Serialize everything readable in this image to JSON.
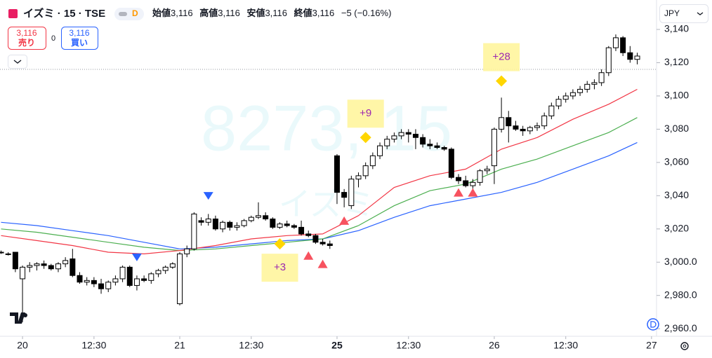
{
  "header": {
    "symbol": "イズミ · 15 · TSE",
    "interval_badge": "D",
    "ohlc_legend": [
      {
        "label": "始値",
        "value": "3,116"
      },
      {
        "label": "高値",
        "value": "3,116"
      },
      {
        "label": "安値",
        "value": "3,116"
      },
      {
        "label": "終値",
        "value": "3,116"
      }
    ],
    "change": "−5 (−0.16%)"
  },
  "trade": {
    "sell_price": "3,116",
    "sell_label": "売り",
    "spread": "0",
    "buy_price": "3,116",
    "buy_label": "買い"
  },
  "currency": "JPY",
  "watermark": {
    "line1": "8273, 15",
    "line2": "イズミ"
  },
  "chart_data": {
    "type": "candlestick",
    "candles": [
      [
        3006,
        3007,
        3005,
        3006
      ],
      [
        3005,
        3006,
        3004,
        3005
      ],
      [
        3006,
        3006,
        2994,
        2996
      ],
      [
        2990,
        2998,
        2964,
        2997
      ],
      [
        2997,
        3000,
        2994,
        2998
      ],
      [
        2998,
        3000,
        2995,
        2999
      ],
      [
        2999,
        3001,
        2996,
        2998
      ],
      [
        2998,
        2999,
        2995,
        2996
      ],
      [
        2996,
        3000,
        2994,
        2999
      ],
      [
        2999,
        3003,
        2997,
        3001
      ],
      [
        3002,
        3008,
        2991,
        2992
      ],
      [
        2992,
        2994,
        2987,
        2988
      ],
      [
        2988,
        2991,
        2986,
        2989
      ],
      [
        2989,
        2991,
        2985,
        2987
      ],
      [
        2987,
        2990,
        2981,
        2984
      ],
      [
        2984,
        2989,
        2982,
        2988
      ],
      [
        2988,
        2992,
        2986,
        2990
      ],
      [
        2990,
        2998,
        2988,
        2997
      ],
      [
        2997,
        2998,
        2985,
        2986
      ],
      [
        2986,
        2992,
        2983,
        2990
      ],
      [
        2990,
        2992,
        2988,
        2989
      ],
      [
        2989,
        2994,
        2987,
        2993
      ],
      [
        2993,
        2996,
        2991,
        2995
      ],
      [
        2995,
        2998,
        2993,
        2997
      ],
      [
        2997,
        3000,
        2996,
        2999
      ],
      [
        2975,
        3006,
        2974,
        3005
      ],
      [
        3005,
        3010,
        3003,
        3008
      ],
      [
        3008,
        3030,
        3007,
        3029
      ],
      [
        3025,
        3027,
        3022,
        3024
      ],
      [
        3024,
        3029,
        3022,
        3026
      ],
      [
        3026,
        3028,
        3019,
        3020
      ],
      [
        3020,
        3025,
        3018,
        3024
      ],
      [
        3024,
        3025,
        3019,
        3021
      ],
      [
        3021,
        3024,
        3019,
        3022
      ],
      [
        3022,
        3026,
        3021,
        3025
      ],
      [
        3025,
        3028,
        3024,
        3027
      ],
      [
        3027,
        3036,
        3026,
        3028
      ],
      [
        3028,
        3030,
        3025,
        3026
      ],
      [
        3026,
        3027,
        3020,
        3021
      ],
      [
        3021,
        3024,
        3020,
        3023
      ],
      [
        3023,
        3025,
        3021,
        3022
      ],
      [
        3022,
        3023,
        3020,
        3021
      ],
      [
        3021,
        3025,
        3016,
        3017
      ],
      [
        3017,
        3019,
        3015,
        3016
      ],
      [
        3016,
        3017,
        3011,
        3012
      ],
      [
        3012,
        3014,
        3010,
        3011
      ],
      [
        3011,
        3013,
        3008,
        3010
      ],
      [
        3064,
        3065,
        3035,
        3042
      ],
      [
        3042,
        3044,
        3033,
        3039
      ],
      [
        3034,
        3052,
        3032,
        3050
      ],
      [
        3050,
        3054,
        3045,
        3052
      ],
      [
        3052,
        3060,
        3050,
        3058
      ],
      [
        3058,
        3066,
        3056,
        3064
      ],
      [
        3064,
        3072,
        3062,
        3070
      ],
      [
        3070,
        3076,
        3068,
        3074
      ],
      [
        3074,
        3078,
        3072,
        3076
      ],
      [
        3076,
        3080,
        3074,
        3078
      ],
      [
        3078,
        3080,
        3072,
        3077
      ],
      [
        3077,
        3080,
        3068,
        3075
      ],
      [
        3075,
        3077,
        3069,
        3071
      ],
      [
        3071,
        3074,
        3068,
        3070
      ],
      [
        3070,
        3072,
        3068,
        3069
      ],
      [
        3069,
        3070,
        3067,
        3068
      ],
      [
        3068,
        3069,
        3050,
        3051
      ],
      [
        3051,
        3053,
        3047,
        3049
      ],
      [
        3049,
        3052,
        3045,
        3046
      ],
      [
        3046,
        3050,
        3044,
        3048
      ],
      [
        3048,
        3056,
        3046,
        3055
      ],
      [
        3055,
        3058,
        3053,
        3056
      ],
      [
        3058,
        3081,
        3047,
        3080
      ],
      [
        3080,
        3099,
        3078,
        3087
      ],
      [
        3087,
        3091,
        3072,
        3082
      ],
      [
        3082,
        3085,
        3079,
        3080
      ],
      [
        3080,
        3082,
        3076,
        3079
      ],
      [
        3079,
        3082,
        3077,
        3081
      ],
      [
        3081,
        3084,
        3079,
        3082
      ],
      [
        3082,
        3090,
        3080,
        3088
      ],
      [
        3088,
        3096,
        3086,
        3094
      ],
      [
        3094,
        3100,
        3092,
        3098
      ],
      [
        3098,
        3102,
        3096,
        3100
      ],
      [
        3100,
        3104,
        3098,
        3102
      ],
      [
        3102,
        3106,
        3100,
        3104
      ],
      [
        3104,
        3109,
        3102,
        3107
      ],
      [
        3107,
        3110,
        3104,
        3108
      ],
      [
        3108,
        3116,
        3106,
        3114
      ],
      [
        3114,
        3130,
        3112,
        3129
      ],
      [
        3129,
        3137,
        3127,
        3135
      ],
      [
        3135,
        3136,
        3124,
        3126
      ],
      [
        3126,
        3130,
        3120,
        3122
      ],
      [
        3122,
        3126,
        3119,
        3124
      ]
    ],
    "up_color": "#ffffff",
    "down_color": "#000000",
    "ma_x": [
      0,
      5,
      10,
      15,
      20,
      25,
      30,
      35,
      40,
      45,
      50,
      55,
      60,
      65,
      70,
      75,
      80,
      85,
      89
    ],
    "series": [
      {
        "color": "#2962ff",
        "values": [
          3024,
          3022,
          3019,
          3016,
          3012,
          3008,
          3009,
          3011,
          3013,
          3014,
          3019,
          3027,
          3034,
          3038,
          3042,
          3048,
          3056,
          3064,
          3072
        ]
      },
      {
        "color": "#4caf50",
        "values": [
          3020,
          3018,
          3015,
          3012,
          3009,
          3007,
          3008,
          3010,
          3012,
          3014,
          3022,
          3034,
          3043,
          3047,
          3056,
          3062,
          3070,
          3078,
          3087
        ]
      },
      {
        "color": "#f23645",
        "values": [
          3016,
          3013,
          3010,
          3006,
          3005,
          3007,
          3010,
          3014,
          3016,
          3017,
          3028,
          3045,
          3052,
          3056,
          3068,
          3075,
          3086,
          3095,
          3104
        ]
      }
    ],
    "sell_signals": {
      "color": "#2962ff",
      "x": [
        19,
        29
      ],
      "y": [
        3001,
        3038
      ]
    },
    "buy_signals": {
      "color": "#f7525f",
      "x": [
        43,
        45,
        48,
        64,
        66
      ],
      "y": [
        3004,
        2999,
        3025,
        3042,
        3042
      ]
    },
    "annotations": [
      {
        "x": 39,
        "y": 3011,
        "label": "+3",
        "placement": "below"
      },
      {
        "x": 51,
        "y": 3075,
        "label": "+9",
        "placement": "above"
      },
      {
        "x": 70,
        "y": 3109,
        "label": "+28",
        "placement": "above"
      }
    ],
    "last_price": 3116,
    "xlim": [
      -0.15,
      91.7
    ],
    "xticks": [
      {
        "value": 3,
        "label": "20"
      },
      {
        "value": 13,
        "label": "12:30"
      },
      {
        "value": 25,
        "label": "21"
      },
      {
        "value": 35,
        "label": "12:30"
      },
      {
        "value": 47,
        "label": "25"
      },
      {
        "value": 57,
        "label": "12:30"
      },
      {
        "value": 69,
        "label": "26"
      },
      {
        "value": 79,
        "label": "12:30"
      },
      {
        "value": 91,
        "label": "27"
      }
    ],
    "ylim": [
      2958.8,
      3141.7
    ],
    "yticks": [
      {
        "value": 2960,
        "label": "2,960.0"
      },
      {
        "value": 2980,
        "label": "2,980.0"
      },
      {
        "value": 3000,
        "label": "3,000.0"
      },
      {
        "value": 3020,
        "label": "3,020"
      },
      {
        "value": 3040,
        "label": "3,040"
      },
      {
        "value": 3060,
        "label": "3,060"
      },
      {
        "value": 3080,
        "label": "3,080"
      },
      {
        "value": 3100,
        "label": "3,100"
      },
      {
        "value": 3120,
        "label": "3,120"
      },
      {
        "value": 3140,
        "label": "3,140"
      }
    ]
  }
}
